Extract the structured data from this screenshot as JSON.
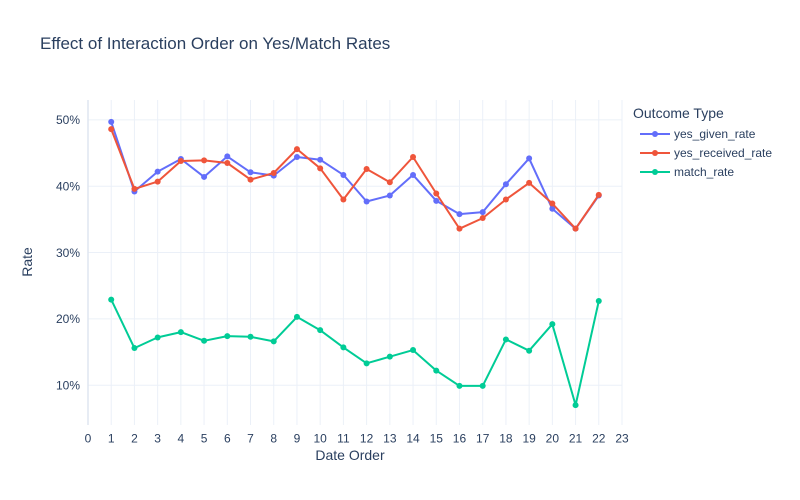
{
  "chart_data": {
    "type": "line",
    "title": "Effect of Interaction Order on Yes/Match Rates",
    "xlabel": "Date Order",
    "ylabel": "Rate",
    "legend_title": "Outcome Type",
    "legend_position": "top-right",
    "grid": true,
    "xlim": [
      0,
      23
    ],
    "ylim": [
      0.04,
      0.53
    ],
    "x_ticks": [
      0,
      1,
      2,
      3,
      4,
      5,
      6,
      7,
      8,
      9,
      10,
      11,
      12,
      13,
      14,
      15,
      16,
      17,
      18,
      19,
      20,
      21,
      22,
      23
    ],
    "y_ticks": [
      0.1,
      0.2,
      0.3,
      0.4,
      0.5
    ],
    "y_tick_labels": [
      "10%",
      "20%",
      "30%",
      "40%",
      "50%"
    ],
    "x": [
      1,
      2,
      3,
      4,
      5,
      6,
      7,
      8,
      9,
      10,
      11,
      12,
      13,
      14,
      15,
      16,
      17,
      18,
      19,
      20,
      21,
      22
    ],
    "series": [
      {
        "name": "yes_given_rate",
        "color": "#636efa",
        "values": [
          0.497,
          0.392,
          0.422,
          0.441,
          0.414,
          0.445,
          0.421,
          0.416,
          0.444,
          0.44,
          0.417,
          0.377,
          0.386,
          0.417,
          0.378,
          0.358,
          0.361,
          0.403,
          0.442,
          0.366,
          0.336,
          0.386
        ]
      },
      {
        "name": "yes_received_rate",
        "color": "#ef553b",
        "values": [
          0.486,
          0.396,
          0.407,
          0.438,
          0.439,
          0.435,
          0.41,
          0.42,
          0.456,
          0.427,
          0.38,
          0.426,
          0.406,
          0.444,
          0.389,
          0.336,
          0.352,
          0.38,
          0.405,
          0.374,
          0.336,
          0.387
        ]
      },
      {
        "name": "match_rate",
        "color": "#00cc96",
        "values": [
          0.229,
          0.156,
          0.172,
          0.18,
          0.167,
          0.174,
          0.173,
          0.166,
          0.203,
          0.183,
          0.157,
          0.133,
          0.143,
          0.153,
          0.122,
          0.099,
          0.099,
          0.169,
          0.152,
          0.192,
          0.07,
          0.227
        ]
      }
    ]
  }
}
